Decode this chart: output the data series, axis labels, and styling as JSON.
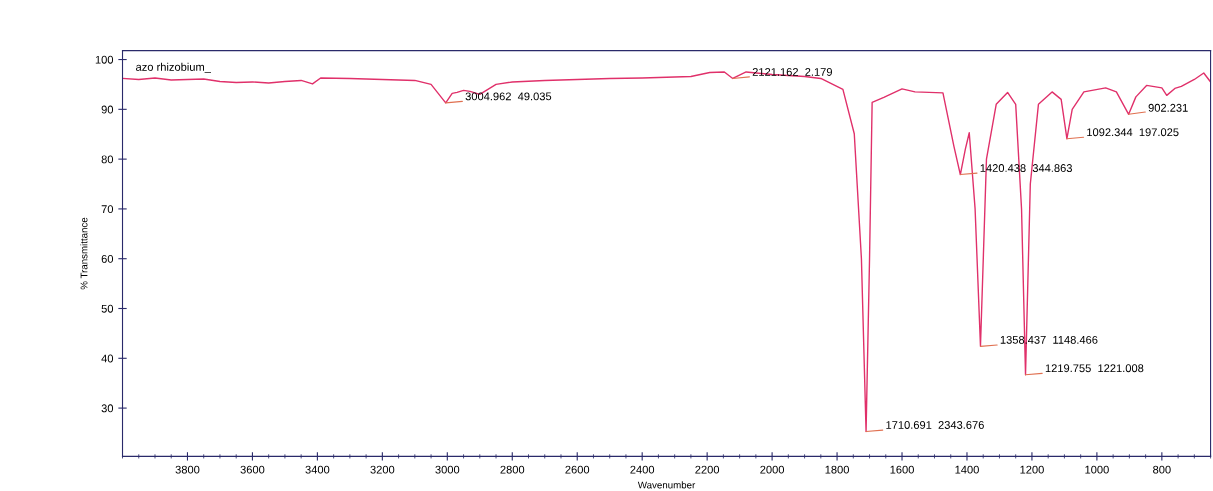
{
  "chart_data": {
    "type": "line",
    "xlabel": "Wavenumber",
    "ylabel": "% Transmittance",
    "xlim": [
      4000,
      650
    ],
    "ylim": [
      20.3,
      101.8
    ],
    "xticks": [
      3800,
      3600,
      3400,
      3200,
      3000,
      2800,
      2600,
      2400,
      2200,
      2000,
      1800,
      1600,
      1400,
      1200,
      1000,
      800
    ],
    "yticks": [
      30,
      40,
      50,
      60,
      70,
      80,
      90,
      100
    ],
    "grid": false,
    "legend": false,
    "marker": "none",
    "line_style": "solid",
    "series": [
      {
        "color": "#e0306a",
        "x": [
          4000,
          3950,
          3900,
          3850,
          3800,
          3750,
          3700,
          3650,
          3600,
          3550,
          3500,
          3450,
          3415,
          3390,
          3300,
          3200,
          3100,
          3050,
          3004.962,
          2985,
          2970,
          2950,
          2930,
          2900,
          2850,
          2800,
          2700,
          2600,
          2500,
          2400,
          2300,
          2250,
          2192,
          2147,
          2121.162,
          2080,
          2000,
          1900,
          1850,
          1782,
          1747,
          1725,
          1710.691,
          1700,
          1692,
          1656,
          1600,
          1560,
          1474,
          1440,
          1420.438,
          1405,
          1393,
          1375,
          1358.437,
          1340,
          1310,
          1275,
          1250,
          1232,
          1219.755,
          1205,
          1180,
          1138,
          1110,
          1092.344,
          1076,
          1040,
          973,
          940,
          902.231,
          880,
          847,
          800,
          785,
          760,
          740,
          700,
          671,
          650
        ],
        "values": [
          96.2,
          96.0,
          96.3,
          95.9,
          96.0,
          96.1,
          95.6,
          95.4,
          95.5,
          95.3,
          95.6,
          95.8,
          95.1,
          96.3,
          96.2,
          96.0,
          95.8,
          95.0,
          91.3,
          93.2,
          93.4,
          93.8,
          93.6,
          93.0,
          95.0,
          95.5,
          95.8,
          96.0,
          96.2,
          96.3,
          96.5,
          96.6,
          97.4,
          97.5,
          96.2,
          97.5,
          97.0,
          96.6,
          96.2,
          94.0,
          85.1,
          60.0,
          25.3,
          60.0,
          91.4,
          92.4,
          94.1,
          93.5,
          93.3,
          82.5,
          76.9,
          82.0,
          85.3,
          70.0,
          42.4,
          80.0,
          91.0,
          93.4,
          91.0,
          70.0,
          36.7,
          75.0,
          91.0,
          93.5,
          92.0,
          84.1,
          90.0,
          93.5,
          94.3,
          93.5,
          89.0,
          92.5,
          94.8,
          94.3,
          92.8,
          94.2,
          94.6,
          96.0,
          97.3,
          95.5
        ]
      }
    ],
    "annotations": [
      "azo rhizobium_",
      {
        "text": "3004.962  49.035",
        "x": 3004.962,
        "y": 91.3
      },
      {
        "text": "2121.162  2.179",
        "x": 2121.162,
        "y": 96.2
      },
      {
        "text": "1710.691  2343.676",
        "x": 1710.691,
        "y": 25.3
      },
      {
        "text": "1420.438  344.863",
        "x": 1420.438,
        "y": 76.9
      },
      {
        "text": "1358.437  1148.466",
        "x": 1358.437,
        "y": 42.4
      },
      {
        "text": "1219.755  1221.008",
        "x": 1219.755,
        "y": 36.7
      },
      {
        "text": "1092.344  197.025",
        "x": 1092.344,
        "y": 84.1
      },
      {
        "text": "902.231",
        "x": 902.231,
        "y": 89.0
      }
    ]
  }
}
